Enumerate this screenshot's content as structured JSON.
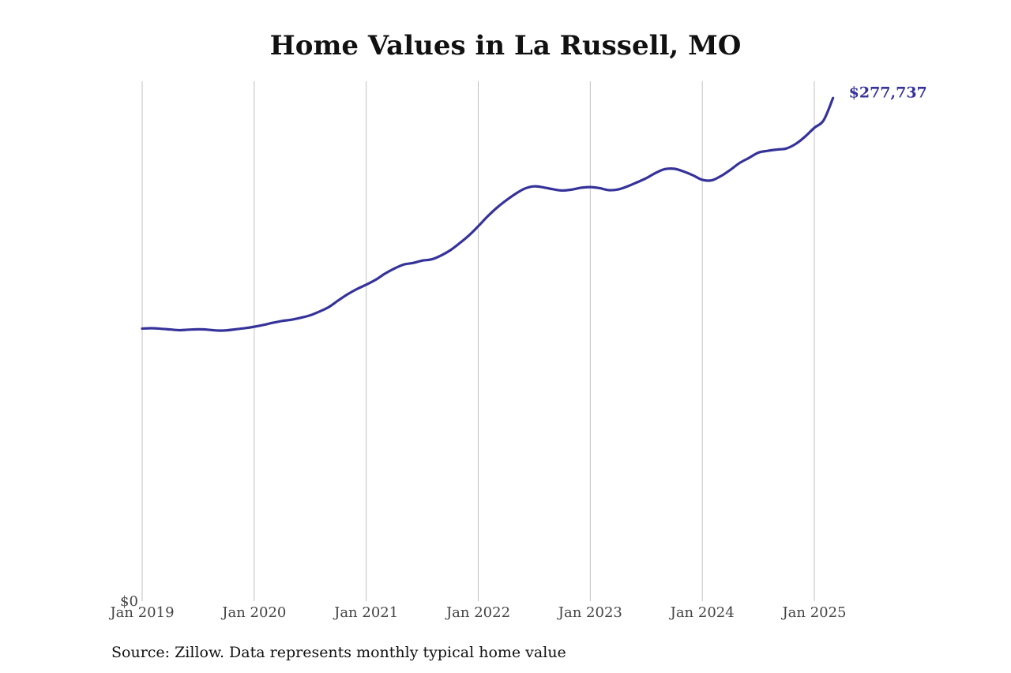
{
  "title": "Home Values in La Russell, MO",
  "source_note": "Source: Zillow. Data represents monthly typical home value",
  "colors": {
    "line": "#35339a",
    "grid": "#c0c0c0",
    "tick_text": "#444444"
  },
  "chart_data": {
    "type": "line",
    "title": "Home Values in La Russell, MO",
    "xlabel": "",
    "ylabel": "",
    "grid": "vertical",
    "xlim": [
      "2019-01",
      "2025-12"
    ],
    "ylim": [
      0,
      287000
    ],
    "x_tick_labels": [
      "Jan 2019",
      "Jan 2020",
      "Jan 2021",
      "Jan 2022",
      "Jan 2023",
      "Jan 2024",
      "Jan 2025"
    ],
    "x_ticks": [
      "2019-01",
      "2020-01",
      "2021-01",
      "2022-01",
      "2023-01",
      "2024-01",
      "2025-01"
    ],
    "y_tick_labels": [
      "$0"
    ],
    "end_label": "$277,737",
    "series": [
      {
        "x": [
          "2019-01",
          "2019-02",
          "2019-03",
          "2019-04",
          "2019-05",
          "2019-06",
          "2019-07",
          "2019-08",
          "2019-09",
          "2019-10",
          "2019-11",
          "2019-12",
          "2020-01",
          "2020-02",
          "2020-03",
          "2020-04",
          "2020-05",
          "2020-06",
          "2020-07",
          "2020-08",
          "2020-09",
          "2020-10",
          "2020-11",
          "2020-12",
          "2021-01",
          "2021-02",
          "2021-03",
          "2021-04",
          "2021-05",
          "2021-06",
          "2021-07",
          "2021-08",
          "2021-09",
          "2021-10",
          "2021-11",
          "2021-12",
          "2022-01",
          "2022-02",
          "2022-03",
          "2022-04",
          "2022-05",
          "2022-06",
          "2022-07",
          "2022-08",
          "2022-09",
          "2022-10",
          "2022-11",
          "2022-12",
          "2023-01",
          "2023-02",
          "2023-03",
          "2023-04",
          "2023-05",
          "2023-06",
          "2023-07",
          "2023-08",
          "2023-09",
          "2023-10",
          "2023-11",
          "2023-12",
          "2024-01",
          "2024-02",
          "2024-03",
          "2024-04",
          "2024-05",
          "2024-06",
          "2024-07",
          "2024-08",
          "2024-09",
          "2024-10",
          "2024-11",
          "2024-12",
          "2025-01",
          "2025-02",
          "2025-03"
        ],
        "values": [
          150500,
          150700,
          150400,
          150000,
          149600,
          149900,
          150100,
          149900,
          149400,
          149500,
          150100,
          150700,
          151500,
          152500,
          153700,
          154700,
          155400,
          156500,
          157800,
          159900,
          162400,
          166000,
          169400,
          172300,
          174700,
          177400,
          180800,
          183600,
          185800,
          186700,
          188000,
          188700,
          190800,
          193700,
          197600,
          201900,
          207000,
          212400,
          217200,
          221300,
          224900,
          227800,
          229000,
          228400,
          227400,
          226700,
          227200,
          228200,
          228600,
          228000,
          226900,
          227300,
          229000,
          231200,
          233500,
          236400,
          238500,
          238700,
          237200,
          235100,
          232600,
          232300,
          234700,
          238100,
          241900,
          244700,
          247600,
          248600,
          249300,
          249900,
          252400,
          256400,
          261300,
          265500,
          277737
        ]
      }
    ]
  }
}
